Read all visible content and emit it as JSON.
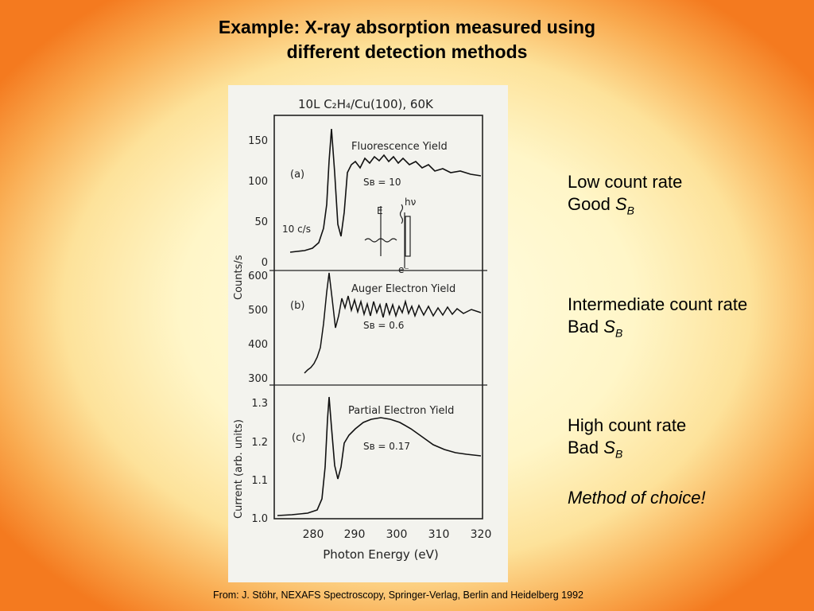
{
  "slide": {
    "title_line1": "Example: X-ray absorption measured using",
    "title_line2": "different detection methods",
    "citation": "From: J. Stöhr, NEXAFS Spectroscopy, Springer-Verlag, Berlin and Heidelberg 1992"
  },
  "notes": [
    {
      "line1": "Low count rate",
      "line2_prefix": "Good ",
      "symbol": "S",
      "sub": "B"
    },
    {
      "line1": "Intermediate count rate",
      "line2_prefix": "Bad ",
      "symbol": "S",
      "sub": "B"
    },
    {
      "line1": "High count rate",
      "line2_prefix": "Bad ",
      "symbol": "S",
      "sub": "B",
      "extra": "Method of choice!"
    }
  ],
  "figure": {
    "header": "10L C₂H₄/Cu(100), 60K",
    "xlabel": "Photon Energy (eV)",
    "xticks": [
      "280",
      "290",
      "300",
      "310",
      "320"
    ],
    "ylabel_top": "Counts/s",
    "ylabel_bottom": "Current (arb. units)",
    "panels": [
      {
        "tag": "(a)",
        "title": "Fluorescence Yield",
        "sb": "Sʙ = 10",
        "yticks": [
          "150",
          "100",
          "50",
          "0"
        ],
        "scale_note": "10 c/s",
        "inset_labels": [
          "E",
          "hν",
          "e⁻"
        ]
      },
      {
        "tag": "(b)",
        "title": "Auger Electron Yield",
        "sb": "Sʙ = 0.6",
        "yticks": [
          "600",
          "500",
          "400",
          "300"
        ]
      },
      {
        "tag": "(c)",
        "title": "Partial Electron Yield",
        "sb": "Sʙ = 0.17",
        "yticks": [
          "1.3",
          "1.2",
          "1.1",
          "1.0"
        ]
      }
    ]
  }
}
